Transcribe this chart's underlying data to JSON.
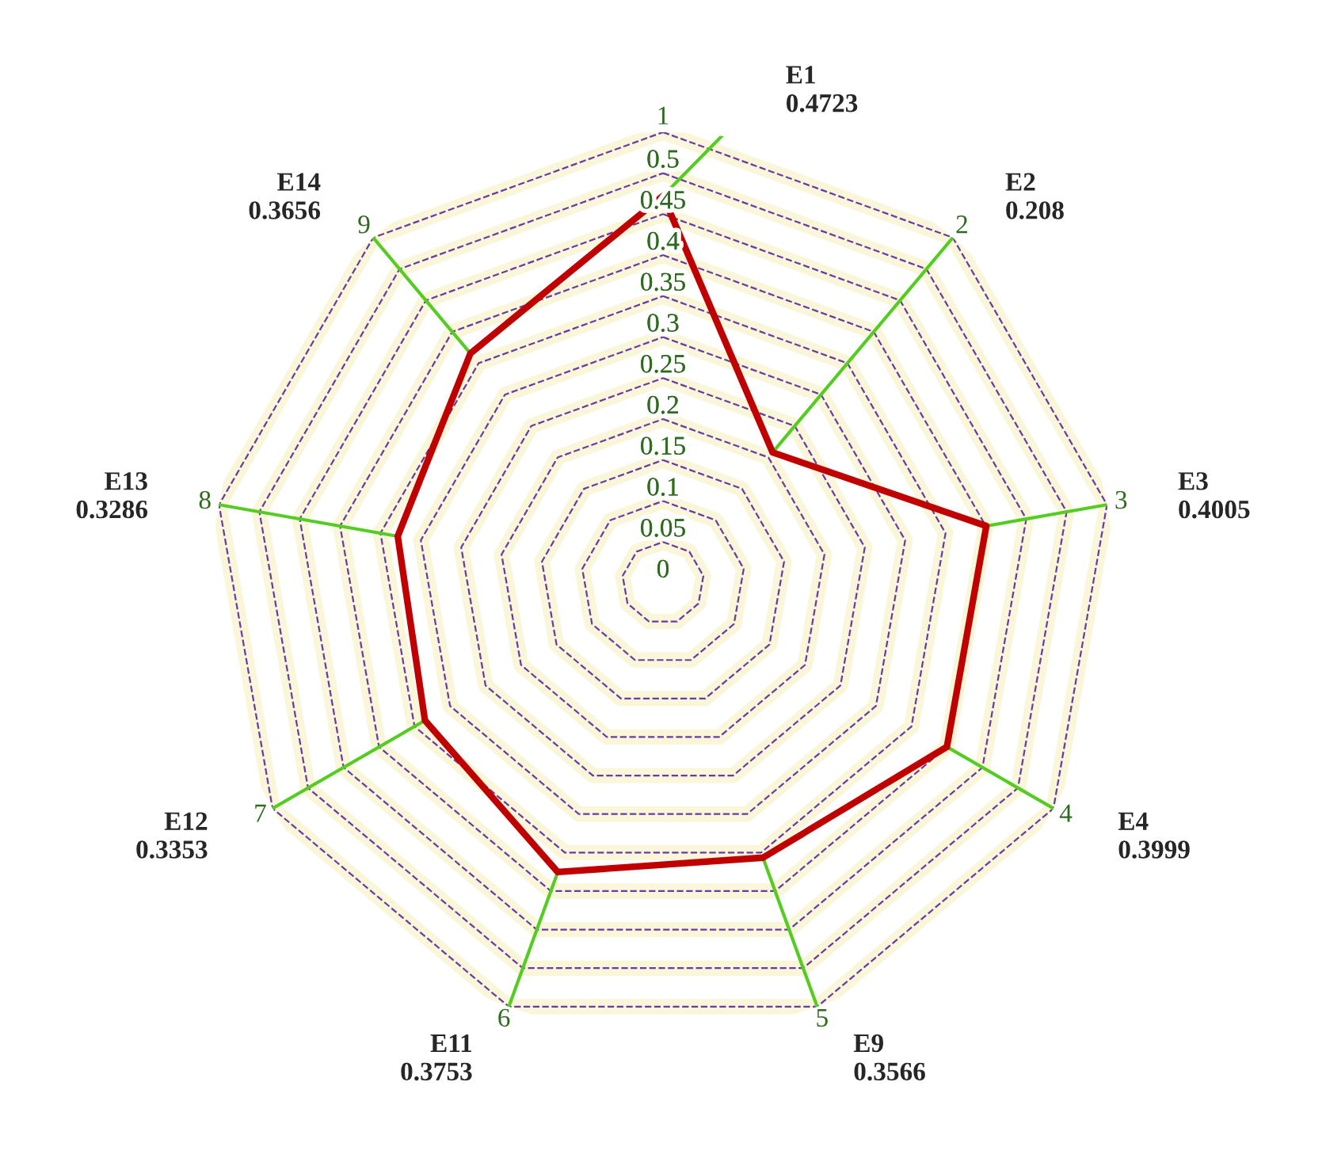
{
  "chart_data": {
    "type": "radar",
    "categories": [
      "1",
      "2",
      "3",
      "4",
      "5",
      "6",
      "7",
      "8",
      "9"
    ],
    "series": [
      {
        "color": "#c00000",
        "values": [
          0.4723,
          0.208,
          0.4005,
          0.3999,
          0.3566,
          0.3753,
          0.3353,
          0.3286,
          0.3656
        ],
        "value_labels": [
          "0.4723",
          "0.208",
          "0.4005",
          "0.3999",
          "0.3566",
          "0.3753",
          "0.3353",
          "0.3286",
          "0.3656"
        ]
      }
    ],
    "ylim": [
      0,
      0.55
    ],
    "yticks": [
      0,
      0.05,
      0.1,
      0.15,
      0.2,
      0.25,
      0.3,
      0.35,
      0.4,
      0.45,
      0.5
    ],
    "grid": true,
    "annotations": [
      "E1",
      "E2",
      "E3",
      "E4",
      "E9",
      "E11",
      "E12",
      "E13",
      "E14"
    ]
  }
}
